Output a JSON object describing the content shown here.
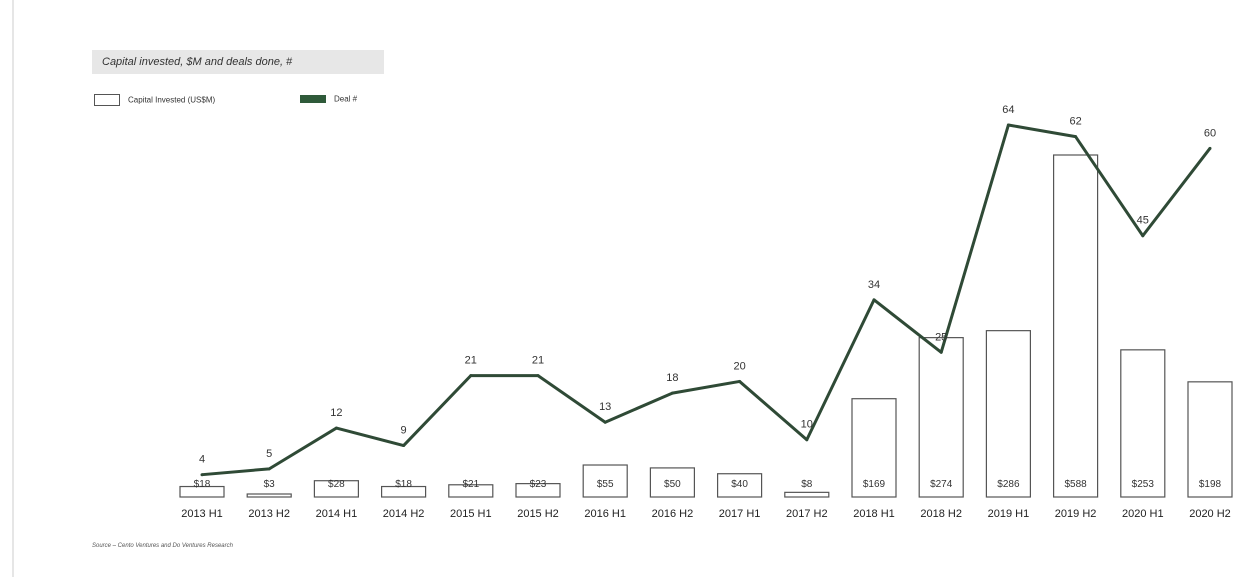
{
  "chart_data": {
    "type": "bar",
    "title": "Capital invested, $M and deals done, #",
    "xlabel": "",
    "ylabel": "",
    "categories": [
      "2013 H1",
      "2013 H2",
      "2014 H1",
      "2014 H2",
      "2015 H1",
      "2015 H2",
      "2016 H1",
      "2016 H2",
      "2017 H1",
      "2017 H2",
      "2018 H1",
      "2018 H2",
      "2019 H1",
      "2019 H2",
      "2020 H1",
      "2020 H2"
    ],
    "series": [
      {
        "name": "Capital Invested (US$M)",
        "type": "bar",
        "values": [
          18,
          3,
          28,
          18,
          21,
          23,
          55,
          50,
          40,
          8,
          169,
          274,
          286,
          588,
          253,
          198
        ],
        "labels": [
          "$18",
          "$3",
          "$28",
          "$18",
          "$21",
          "$23",
          "$55",
          "$50",
          "$40",
          "$8",
          "$169",
          "$274",
          "$286",
          "$588",
          "$253",
          "$198"
        ],
        "color": "#ffffff",
        "stroke": "#555555"
      },
      {
        "name": "Deal #",
        "type": "line",
        "values": [
          4,
          5,
          12,
          9,
          21,
          21,
          13,
          18,
          20,
          10,
          34,
          25,
          64,
          62,
          45,
          60
        ],
        "color": "#2f4a36"
      }
    ],
    "bar_ylim": [
      0,
      640
    ],
    "line_ylim": [
      0,
      70
    ],
    "grid": false,
    "legend_position": "top-left"
  },
  "source": "Source – Cento Ventures and Do Ventures Research"
}
